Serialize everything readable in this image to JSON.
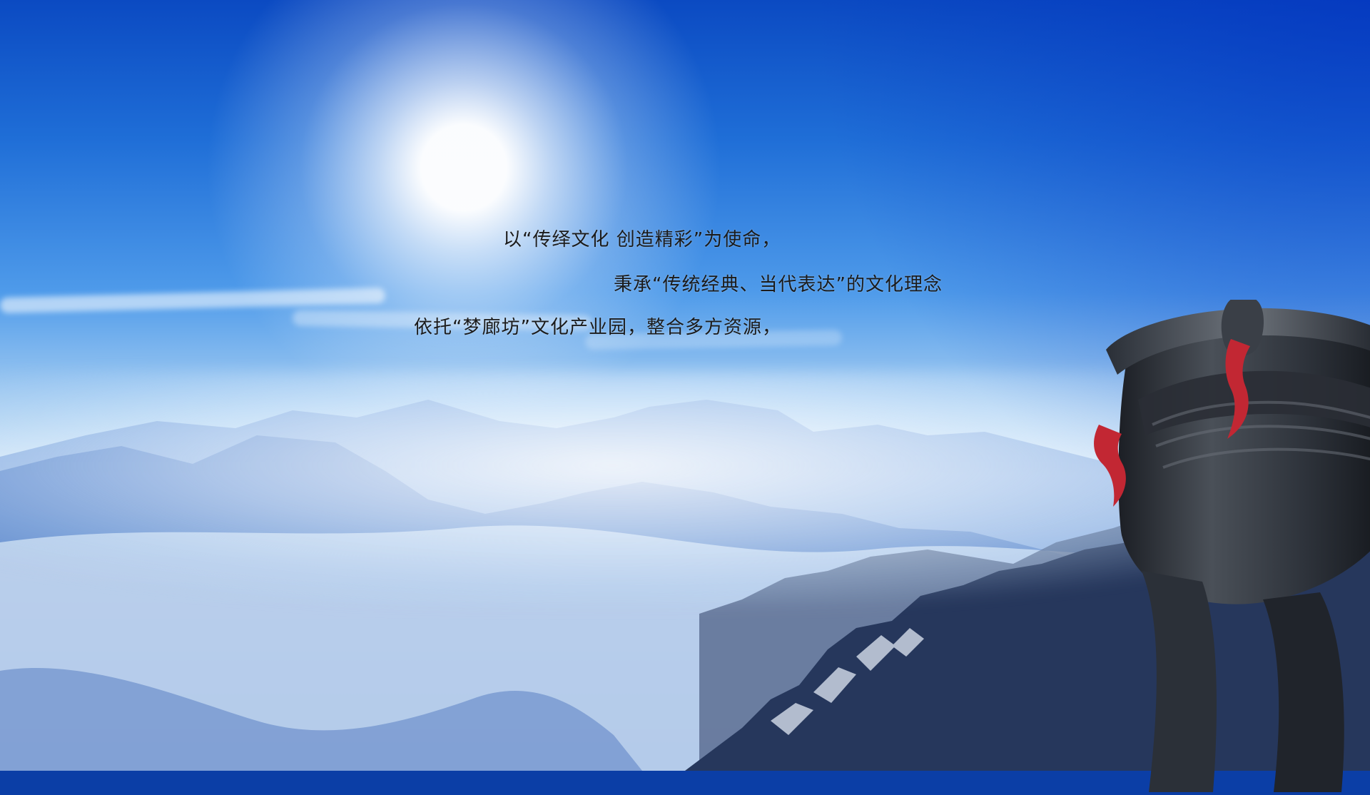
{
  "text_lines": [
    "以“传绎文化 创造精彩”为使命，",
    "秉承“传统经典、当代表达”的文化理念",
    "依托“梦廊坊”文化产业园，整合多方资源，"
  ],
  "colors": {
    "text": "#1b1b1b",
    "sky_top": "#0b4ac2",
    "sky_mid": "#4f9bea",
    "mist": "#e6f1fb",
    "mountain_far": "#6f98d7",
    "mountain_mid": "#3f6fc0",
    "mountain_near": "#26375c",
    "rock": "#2b2f39",
    "bronze": "#3c4047",
    "ribbon": "#c22733"
  },
  "scene_elements": [
    "sky",
    "sun",
    "clouds",
    "mist",
    "mountain-ridges",
    "rocky-cliff",
    "bronze-vessel"
  ]
}
